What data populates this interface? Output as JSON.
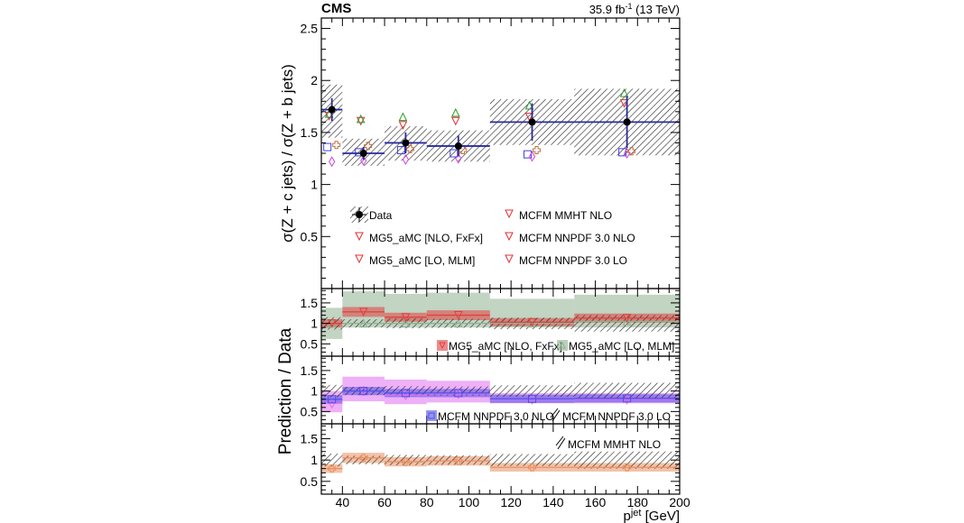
{
  "header": {
    "experiment": "CMS",
    "lumi": "35.9 fb",
    "lumi_exp": "-1",
    "energy": " (13 TeV)"
  },
  "chart_data": [
    {
      "type": "scatter",
      "ylabel": "σ(Z + c jets) / σ(Z + b jets)",
      "xlabel_main": "p",
      "xlabel_sup": "jet",
      "xlabel_unit": " [GeV]",
      "xlim": [
        30,
        200
      ],
      "ylim": [
        0,
        2.6
      ],
      "yticks": [
        "0.5",
        "1",
        "1.5",
        "2",
        "2.5"
      ],
      "xticks": [
        "40",
        "60",
        "80",
        "100",
        "120",
        "140",
        "160",
        "180",
        "200"
      ],
      "bins": [
        [
          30,
          40
        ],
        [
          40,
          60
        ],
        [
          60,
          80
        ],
        [
          80,
          110
        ],
        [
          110,
          150
        ],
        [
          150,
          200
        ]
      ],
      "x_points": [
        35,
        50,
        70,
        95,
        130,
        175
      ],
      "data": {
        "name": "Data",
        "values": [
          1.72,
          1.3,
          1.4,
          1.37,
          1.6,
          1.6
        ],
        "stat_err": [
          0.11,
          0.06,
          0.1,
          0.1,
          0.18,
          0.25
        ],
        "syst_band": [
          [
            1.45,
            1.96
          ],
          [
            1.18,
            1.44
          ],
          [
            1.23,
            1.56
          ],
          [
            1.22,
            1.52
          ],
          [
            1.38,
            1.82
          ],
          [
            1.28,
            1.92
          ]
        ]
      },
      "predictions": [
        {
          "name": "MG5_aMC [NLO, FxFx]",
          "marker": "triangle-down",
          "color": "#e03030",
          "values": [
            1.66,
            1.61,
            1.57,
            1.61,
            1.65,
            1.78
          ]
        },
        {
          "name": "MG5_aMC [LO, MLM]",
          "marker": "triangle-up",
          "color": "#2a9a2a",
          "values": [
            1.68,
            1.63,
            1.65,
            1.69,
            1.76,
            1.88
          ]
        },
        {
          "name": "MCFM NNPDF 3.0 NLO",
          "marker": "square",
          "color": "#4040e0",
          "values": [
            1.36,
            1.31,
            1.33,
            1.3,
            1.29,
            1.31
          ]
        },
        {
          "name": "MCFM NNPDF 3.0 LO",
          "marker": "diamond",
          "color": "#d040e0",
          "values": [
            1.22,
            1.23,
            1.24,
            1.25,
            1.27,
            1.3
          ]
        },
        {
          "name": "MCFM MMHT NLO",
          "marker": "cross",
          "color": "#c07040",
          "values": [
            1.38,
            1.37,
            1.34,
            1.33,
            1.33,
            1.32
          ]
        }
      ],
      "legend": {
        "placement": "bottom-center",
        "entries": [
          "Data",
          "MG5_aMC [NLO, FxFx]",
          "MG5_aMC [LO, MLM]",
          "MCFM MMHT NLO",
          "MCFM NNPDF 3.0 NLO",
          "MCFM NNPDF 3.0 LO"
        ]
      }
    },
    {
      "type": "ratio",
      "ylabel": "Prediction / Data",
      "ylim": [
        0.2,
        1.85
      ],
      "yticks": [
        "0.5",
        "1",
        "1.5"
      ],
      "data_rel_unc": [
        0.15,
        0.1,
        0.12,
        0.11,
        0.14,
        0.2
      ],
      "panels": [
        {
          "series": [
            {
              "name": "MG5_aMC [LO, MLM]",
              "color": "#8fb08f",
              "values": [
                1.0,
                1.0,
                1.0,
                1.0,
                1.0,
                1.05
              ],
              "band": [
                [
                  0.62,
                  1.38
                ],
                [
                  0.9,
                  1.78
                ],
                [
                  0.9,
                  1.72
                ],
                [
                  0.9,
                  1.75
                ],
                [
                  0.9,
                  1.6
                ],
                [
                  0.9,
                  1.7
                ]
              ],
              "marker": "triangle-up"
            },
            {
              "name": "MG5_aMC [NLO, FxFx]",
              "color": "#e04040",
              "values": [
                1.0,
                1.28,
                1.15,
                1.2,
                1.03,
                1.13
              ],
              "band": [
                [
                  0.9,
                  1.1
                ],
                [
                  1.16,
                  1.4
                ],
                [
                  1.04,
                  1.26
                ],
                [
                  1.08,
                  1.32
                ],
                [
                  0.93,
                  1.13
                ],
                [
                  1.02,
                  1.24
                ]
              ],
              "marker": "triangle-down"
            }
          ],
          "legend": [
            "MG5_aMC [NLO, FxFx]",
            "MG5_aMC [LO, MLM]"
          ]
        },
        {
          "series": [
            {
              "name": "MCFM NNPDF 3.0 LO",
              "color": "#e070f0",
              "values": [
                0.7,
                1.0,
                0.9,
                0.93,
                0.8,
                0.8
              ],
              "band": [
                [
                  0.48,
                  1.0
                ],
                [
                  0.75,
                  1.35
                ],
                [
                  0.68,
                  1.28
                ],
                [
                  0.72,
                  1.25
                ],
                [
                  0.7,
                  0.95
                ],
                [
                  0.7,
                  0.95
                ]
              ],
              "marker": "diamond"
            },
            {
              "name": "MCFM NNPDF 3.0 NLO",
              "color": "#5050e8",
              "values": [
                0.8,
                1.0,
                0.95,
                0.95,
                0.81,
                0.82
              ],
              "band": [
                [
                  0.7,
                  0.9
                ],
                [
                  0.9,
                  1.1
                ],
                [
                  0.85,
                  1.05
                ],
                [
                  0.85,
                  1.05
                ],
                [
                  0.71,
                  0.91
                ],
                [
                  0.72,
                  0.92
                ]
              ],
              "marker": "square"
            }
          ],
          "legend": [
            "MCFM NNPDF 3.0 NLO",
            "MCFM NNPDF 3.0 LO"
          ]
        },
        {
          "series": [
            {
              "name": "MCFM MMHT NLO",
              "color": "#e89060",
              "values": [
                0.8,
                1.05,
                0.96,
                0.98,
                0.83,
                0.83
              ],
              "band": [
                [
                  0.7,
                  0.9
                ],
                [
                  0.93,
                  1.17
                ],
                [
                  0.85,
                  1.07
                ],
                [
                  0.87,
                  1.09
                ],
                [
                  0.73,
                  0.93
                ],
                [
                  0.73,
                  0.93
                ]
              ],
              "marker": "cross"
            }
          ],
          "legend": [
            "MCFM MMHT NLO"
          ]
        }
      ]
    }
  ]
}
